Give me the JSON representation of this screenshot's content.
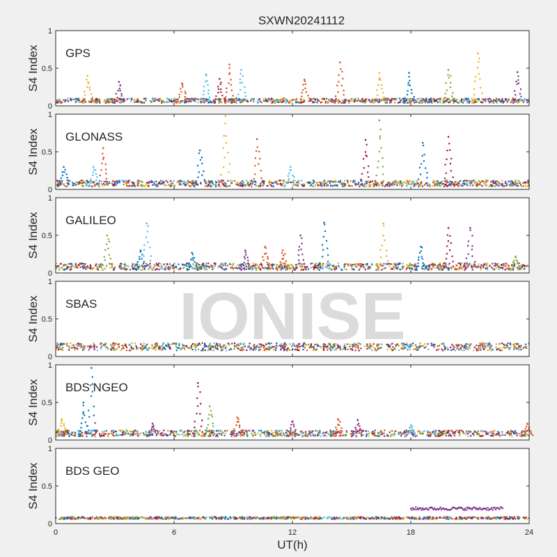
{
  "figure": {
    "title": "SXWN20241112",
    "xlabel": "UT(h)",
    "watermark": "IONISE",
    "background": "#f0f0f0"
  },
  "chart_data": {
    "type": "scatter",
    "x_range": [
      0,
      24
    ],
    "x_ticks": [
      0,
      6,
      12,
      18,
      24
    ],
    "x_tick_labels": [
      "0",
      "6",
      "12",
      "18",
      "24"
    ],
    "grid": false,
    "series_colors": [
      "#0072bd",
      "#d95319",
      "#edb120",
      "#7e2f8e",
      "#77ac30",
      "#4dbeee",
      "#a2142f"
    ],
    "panels": [
      {
        "label": "GPS",
        "ylabel": "S4 Index",
        "ylim": [
          0,
          1
        ],
        "y_ticks": [
          0,
          0.5,
          1
        ],
        "y_tick_labels": [
          "0",
          "0.5",
          "1"
        ],
        "baseline": [
          0.04,
          0.1
        ],
        "spikes": [
          {
            "x": 1.6,
            "y": 0.4,
            "color": 2
          },
          {
            "x": 3.2,
            "y": 0.32,
            "color": 3
          },
          {
            "x": 6.4,
            "y": 0.3,
            "color": 1
          },
          {
            "x": 7.6,
            "y": 0.42,
            "color": 5
          },
          {
            "x": 8.3,
            "y": 0.36,
            "color": 6
          },
          {
            "x": 8.8,
            "y": 0.55,
            "color": 1
          },
          {
            "x": 9.4,
            "y": 0.48,
            "color": 5
          },
          {
            "x": 12.6,
            "y": 0.35,
            "color": 1
          },
          {
            "x": 14.4,
            "y": 0.58,
            "color": 1
          },
          {
            "x": 16.4,
            "y": 0.44,
            "color": 2
          },
          {
            "x": 17.9,
            "y": 0.44,
            "color": 0
          },
          {
            "x": 19.9,
            "y": 0.48,
            "color": 4
          },
          {
            "x": 21.4,
            "y": 0.7,
            "color": 2
          },
          {
            "x": 23.4,
            "y": 0.45,
            "color": 3
          }
        ]
      },
      {
        "label": "GLONASS",
        "ylabel": "S4 Index",
        "ylim": [
          0,
          1
        ],
        "y_ticks": [
          0,
          0.5,
          1
        ],
        "y_tick_labels": [
          "0",
          "0.5",
          "1"
        ],
        "baseline": [
          0.04,
          0.12
        ],
        "spikes": [
          {
            "x": 0.4,
            "y": 0.3,
            "color": 0
          },
          {
            "x": 1.9,
            "y": 0.3,
            "color": 5
          },
          {
            "x": 2.4,
            "y": 0.55,
            "color": 1
          },
          {
            "x": 7.3,
            "y": 0.52,
            "color": 0
          },
          {
            "x": 8.6,
            "y": 0.98,
            "color": 2
          },
          {
            "x": 10.2,
            "y": 0.67,
            "color": 1
          },
          {
            "x": 11.9,
            "y": 0.3,
            "color": 5
          },
          {
            "x": 15.7,
            "y": 0.66,
            "color": 6
          },
          {
            "x": 16.4,
            "y": 0.92,
            "color": 4
          },
          {
            "x": 18.6,
            "y": 0.62,
            "color": 0
          },
          {
            "x": 19.9,
            "y": 0.7,
            "color": 6
          }
        ]
      },
      {
        "label": "GALILEO",
        "ylabel": "S4 Index",
        "ylim": [
          0,
          1
        ],
        "y_ticks": [
          0,
          0.5,
          1
        ],
        "y_tick_labels": [
          "0",
          "0.5",
          "1"
        ],
        "baseline": [
          0.04,
          0.13
        ],
        "spikes": [
          {
            "x": 2.6,
            "y": 0.5,
            "color": 4
          },
          {
            "x": 4.6,
            "y": 0.66,
            "color": 5
          },
          {
            "x": 4.3,
            "y": 0.3,
            "color": 0
          },
          {
            "x": 6.9,
            "y": 0.27,
            "color": 0
          },
          {
            "x": 9.6,
            "y": 0.3,
            "color": 3
          },
          {
            "x": 10.6,
            "y": 0.35,
            "color": 1
          },
          {
            "x": 11.5,
            "y": 0.3,
            "color": 1
          },
          {
            "x": 12.4,
            "y": 0.5,
            "color": 3
          },
          {
            "x": 13.6,
            "y": 0.67,
            "color": 0
          },
          {
            "x": 16.6,
            "y": 0.66,
            "color": 2
          },
          {
            "x": 18.5,
            "y": 0.35,
            "color": 0
          },
          {
            "x": 19.9,
            "y": 0.6,
            "color": 6
          },
          {
            "x": 21.0,
            "y": 0.6,
            "color": 3
          },
          {
            "x": 23.3,
            "y": 0.22,
            "color": 4
          }
        ]
      },
      {
        "label": "SBAS",
        "ylabel": "S4 Index",
        "ylim": [
          0,
          1
        ],
        "y_ticks": [
          0,
          0.5,
          1
        ],
        "y_tick_labels": [
          "0",
          "0.5",
          "1"
        ],
        "baseline": [
          0.08,
          0.18
        ],
        "spikes": []
      },
      {
        "label": "BDS NGEO",
        "ylabel": "S4 Index",
        "ylim": [
          0,
          1
        ],
        "y_ticks": [
          0,
          0.5,
          1
        ],
        "y_tick_labels": [
          "0",
          "0.5",
          "1"
        ],
        "baseline": [
          0.05,
          0.13
        ],
        "spikes": [
          {
            "x": 0.3,
            "y": 0.28,
            "color": 2
          },
          {
            "x": 1.8,
            "y": 0.96,
            "color": 0
          },
          {
            "x": 1.4,
            "y": 0.5,
            "color": 0
          },
          {
            "x": 4.9,
            "y": 0.22,
            "color": 3
          },
          {
            "x": 7.2,
            "y": 0.76,
            "color": 6
          },
          {
            "x": 7.8,
            "y": 0.45,
            "color": 4
          },
          {
            "x": 9.2,
            "y": 0.3,
            "color": 1
          },
          {
            "x": 12.0,
            "y": 0.25,
            "color": 3
          },
          {
            "x": 14.3,
            "y": 0.28,
            "color": 1
          },
          {
            "x": 15.3,
            "y": 0.27,
            "color": 3
          },
          {
            "x": 18.0,
            "y": 0.2,
            "color": 5
          },
          {
            "x": 23.9,
            "y": 0.22,
            "color": 1
          }
        ]
      },
      {
        "label": "BDS GEO",
        "ylabel": "S4 Index",
        "ylim": [
          0,
          1
        ],
        "y_ticks": [
          0,
          0.5,
          1
        ],
        "y_tick_labels": [
          "0",
          "0.5",
          "1"
        ],
        "baseline": [
          0.06,
          0.09
        ],
        "spikes": [],
        "band": {
          "x_start": 18.0,
          "x_end": 22.7,
          "y": 0.2,
          "color": 3
        }
      }
    ]
  }
}
